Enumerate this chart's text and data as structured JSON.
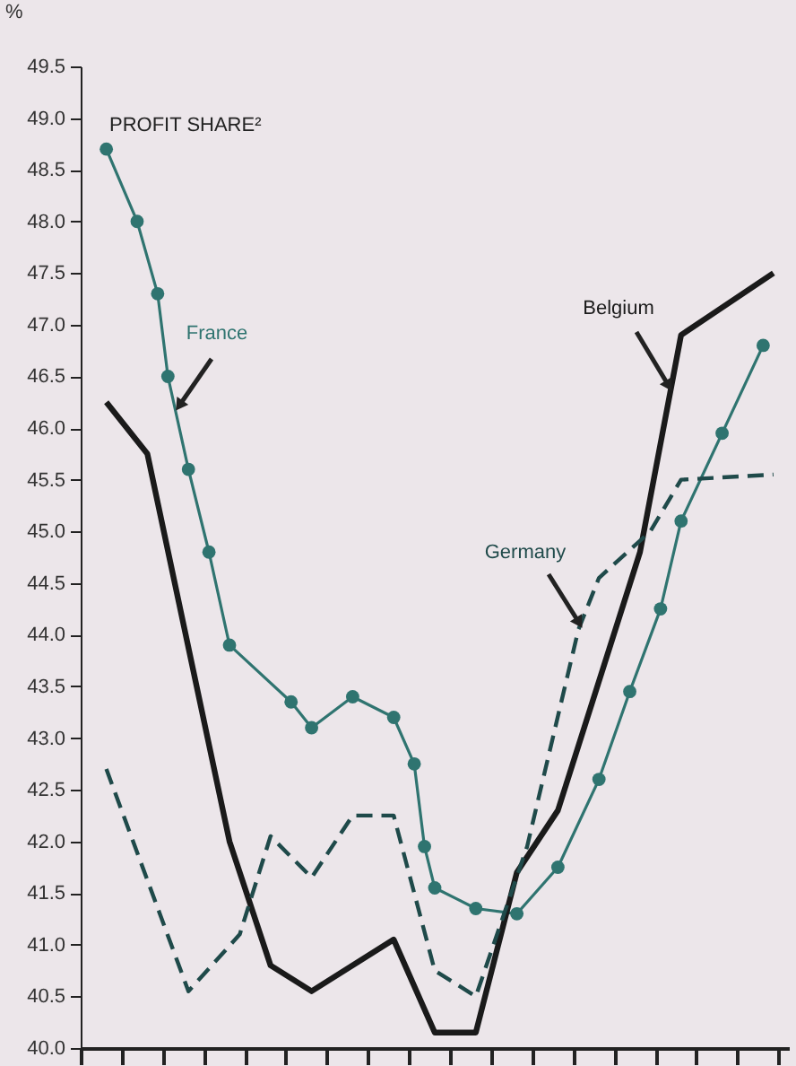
{
  "chart_data": {
    "type": "line",
    "title": "PROFIT SHARE²",
    "ylabel": "%",
    "categories": [
      null,
      null,
      null,
      null,
      null,
      null,
      null,
      null,
      null,
      null,
      null,
      null,
      null,
      null,
      null,
      null,
      null,
      null,
      null,
      null,
      null,
      null,
      null,
      null,
      null,
      null,
      null,
      null,
      null,
      null,
      null,
      null,
      null,
      null,
      null,
      null,
      null,
      null,
      null,
      null,
      null,
      null,
      null,
      null,
      null,
      null,
      null,
      null,
      null,
      null,
      null,
      null,
      null,
      null,
      null,
      null,
      null,
      null,
      null,
      null,
      null,
      null,
      null,
      null,
      null,
      null,
      null,
      null,
      null
    ],
    "ylim": [
      40,
      49.5
    ],
    "yticks": [
      {
        "value": 40,
        "label": "40.0"
      },
      40.5,
      {
        "value": 41,
        "label": "41.0"
      },
      41.5,
      {
        "value": 42,
        "label": "42.0"
      },
      42.5,
      {
        "value": 43,
        "label": "43.0"
      },
      43.5,
      {
        "value": 44,
        "label": "44.0"
      },
      44.5,
      {
        "value": 45,
        "label": "45.0"
      },
      45.5,
      {
        "value": 46,
        "label": "46.0"
      },
      46.5,
      {
        "value": 47,
        "label": "47.0"
      },
      47.5,
      {
        "value": 48,
        "label": "48.0"
      },
      48.5,
      {
        "value": 49,
        "label": "49.0"
      },
      49.5
    ],
    "tick_labels": "y",
    "series": [
      {
        "name": "France",
        "color": "#2f7470",
        "marker": "circle",
        "line_style": "solid",
        "values": [
          null,
          null,
          48.7,
          null,
          null,
          48.0,
          null,
          47.3,
          46.5,
          null,
          45.6,
          null,
          44.8,
          null,
          43.9,
          null,
          null,
          null,
          null,
          null,
          43.35,
          null,
          43.1,
          null,
          null,
          null,
          43.4,
          null,
          null,
          null,
          43.2,
          null,
          42.75,
          41.95,
          41.55,
          null,
          null,
          null,
          41.35,
          null,
          null,
          null,
          41.3,
          null,
          null,
          null,
          41.75,
          null,
          null,
          null,
          42.6,
          null,
          null,
          43.45,
          null,
          null,
          44.25,
          null,
          45.1,
          null,
          null,
          null,
          45.95,
          null,
          null,
          null,
          46.8,
          null,
          null
        ]
      },
      {
        "name": "Belgium",
        "color": "#1a1a1a",
        "marker": "none",
        "line_style": "solid",
        "values": [
          null,
          null,
          46.25,
          null,
          null,
          null,
          45.75,
          null,
          null,
          null,
          null,
          null,
          null,
          null,
          42.0,
          null,
          null,
          null,
          40.8,
          null,
          null,
          null,
          40.55,
          null,
          null,
          null,
          null,
          null,
          null,
          null,
          41.05,
          null,
          null,
          null,
          40.15,
          null,
          null,
          null,
          40.15,
          null,
          null,
          null,
          41.7,
          null,
          null,
          null,
          42.3,
          null,
          null,
          null,
          null,
          null,
          null,
          null,
          44.8,
          null,
          null,
          null,
          46.9,
          null,
          null,
          47.1,
          null,
          null,
          null,
          null,
          null,
          47.5,
          null
        ]
      },
      {
        "name": "Germany",
        "color": "#1f4a4a",
        "marker": "none",
        "line_style": "dashed",
        "values": [
          null,
          null,
          42.7,
          null,
          null,
          null,
          null,
          null,
          null,
          null,
          40.55,
          null,
          null,
          null,
          null,
          41.1,
          null,
          null,
          42.05,
          null,
          null,
          null,
          41.65,
          null,
          null,
          null,
          42.25,
          null,
          null,
          null,
          42.25,
          null,
          null,
          null,
          40.75,
          null,
          null,
          null,
          40.5,
          null,
          null,
          null,
          null,
          41.95,
          null,
          null,
          null,
          null,
          44.05,
          null,
          44.55,
          null,
          null,
          null,
          null,
          45.0,
          null,
          null,
          45.5,
          null,
          null,
          null,
          null,
          null,
          null,
          null,
          null,
          45.55,
          null
        ]
      }
    ]
  }
}
